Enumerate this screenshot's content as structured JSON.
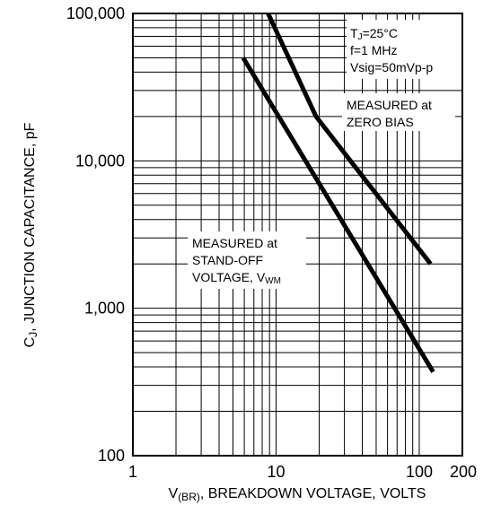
{
  "chart_data": {
    "type": "line",
    "xscale": "log",
    "yscale": "log",
    "xlim": [
      1,
      200
    ],
    "ylim": [
      100,
      100000
    ],
    "grid": true,
    "xlabel_main": "V",
    "xlabel_sub": "(BR)",
    "xlabel_rest": ", BREAKDOWN VOLTAGE, VOLTS",
    "ylabel_main": "C",
    "ylabel_sub": "J",
    "ylabel_rest": ", JUNCTION CAPACITANCE, pF",
    "xticks": [
      {
        "value": 1,
        "label": "1"
      },
      {
        "value": 10,
        "label": "10"
      },
      {
        "value": 100,
        "label": "100"
      },
      {
        "value": 200,
        "label": "200"
      }
    ],
    "yticks": [
      {
        "value": 100,
        "label": "100"
      },
      {
        "value": 1000,
        "label": "1,000"
      },
      {
        "value": 10000,
        "label": "10,000"
      },
      {
        "value": 100000,
        "label": "100,000"
      }
    ],
    "series": [
      {
        "x": [
          8.8,
          19,
          120
        ],
        "y": [
          100000,
          20000,
          2000
        ]
      },
      {
        "x": [
          5.9,
          125
        ],
        "y": [
          50000,
          370
        ]
      }
    ],
    "annotations": {
      "conditions": {
        "tj_main": "T",
        "tj_sub": "J",
        "tj_rest": "=25°C",
        "freq": "f=1 MHz",
        "vsig": "Vsig=50mVp-p"
      },
      "zero_bias": [
        "MEASURED at",
        "ZERO BIAS"
      ],
      "standoff": {
        "line1": "MEASURED at",
        "line2": "STAND-OFF",
        "line3_main": "VOLTAGE, V",
        "line3_sub": "WM"
      }
    }
  }
}
